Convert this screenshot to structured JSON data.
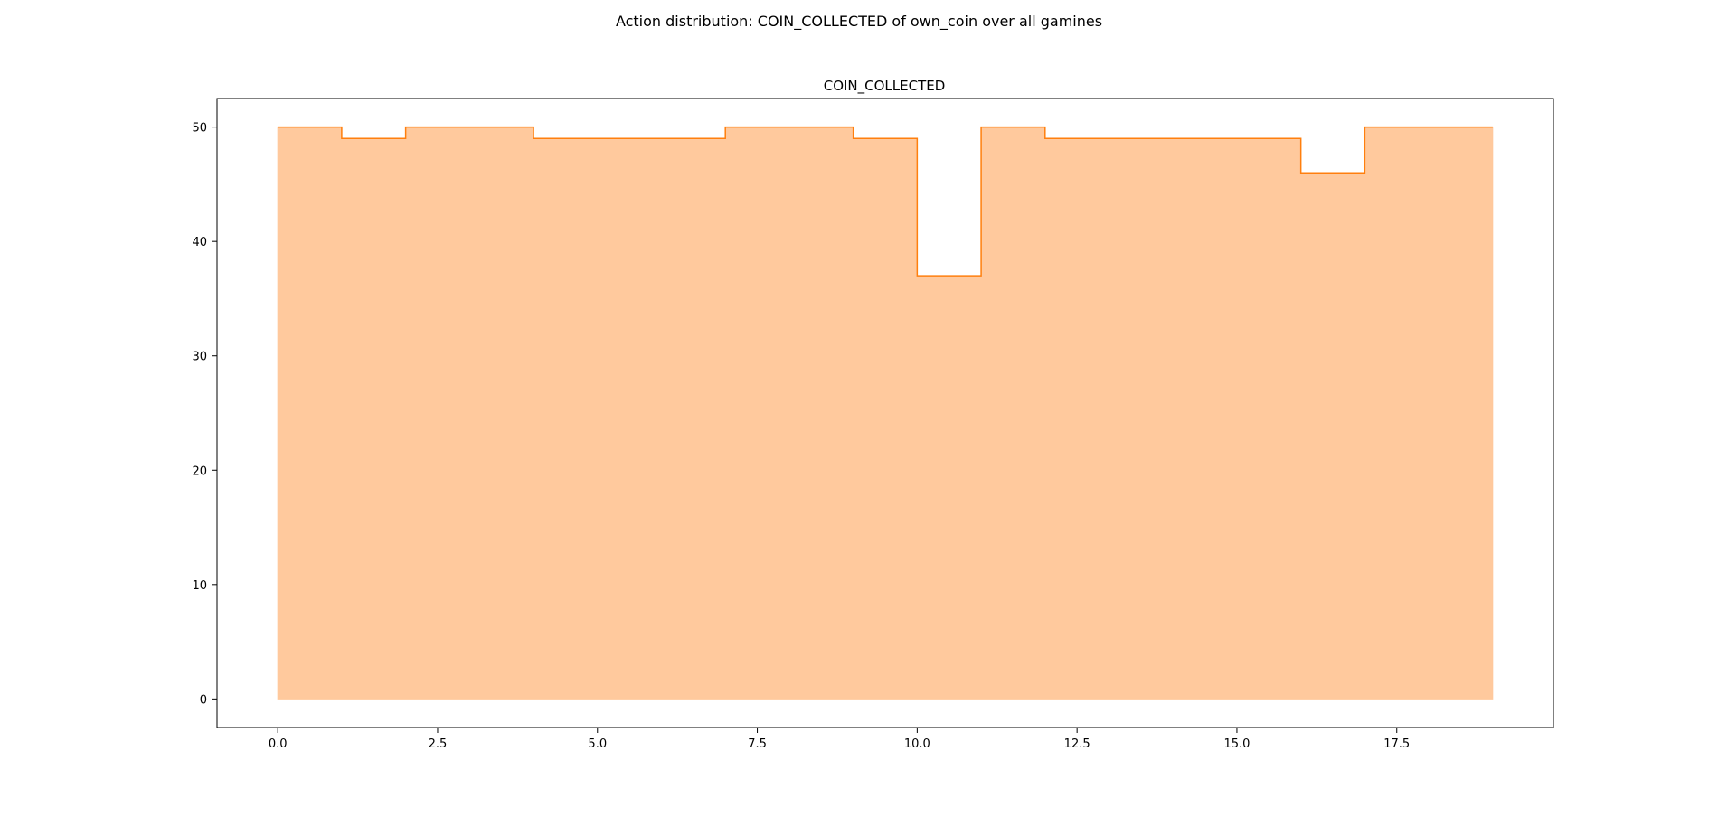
{
  "figure": {
    "suptitle": "Action distribution: COIN_COLLECTED of own_coin over all gamines"
  },
  "chart_data": {
    "type": "area",
    "step": "post",
    "title": "COIN_COLLECTED",
    "xlabel": "",
    "ylabel": "",
    "xlim": [
      -0.95,
      19.95
    ],
    "ylim": [
      -2.5,
      52.5
    ],
    "xticks": [
      0.0,
      2.5,
      5.0,
      7.5,
      10.0,
      12.5,
      15.0,
      17.5
    ],
    "xtick_labels": [
      "0.0",
      "2.5",
      "5.0",
      "7.5",
      "10.0",
      "12.5",
      "15.0",
      "17.5"
    ],
    "yticks": [
      0,
      10,
      20,
      30,
      40,
      50
    ],
    "ytick_labels": [
      "0",
      "10",
      "20",
      "30",
      "40",
      "50"
    ],
    "grid": false,
    "series": [
      {
        "name": "COIN_COLLECTED",
        "x": [
          0,
          1,
          2,
          3,
          4,
          5,
          6,
          7,
          8,
          9,
          10,
          11,
          12,
          13,
          14,
          15,
          16,
          17,
          18,
          19
        ],
        "values": [
          50,
          49,
          50,
          50,
          49,
          49,
          49,
          50,
          50,
          49,
          37,
          50,
          49,
          49,
          49,
          49,
          46,
          50,
          50,
          50
        ],
        "line_color": "#ff7f0e",
        "fill_color": "#ffc99d"
      }
    ]
  }
}
